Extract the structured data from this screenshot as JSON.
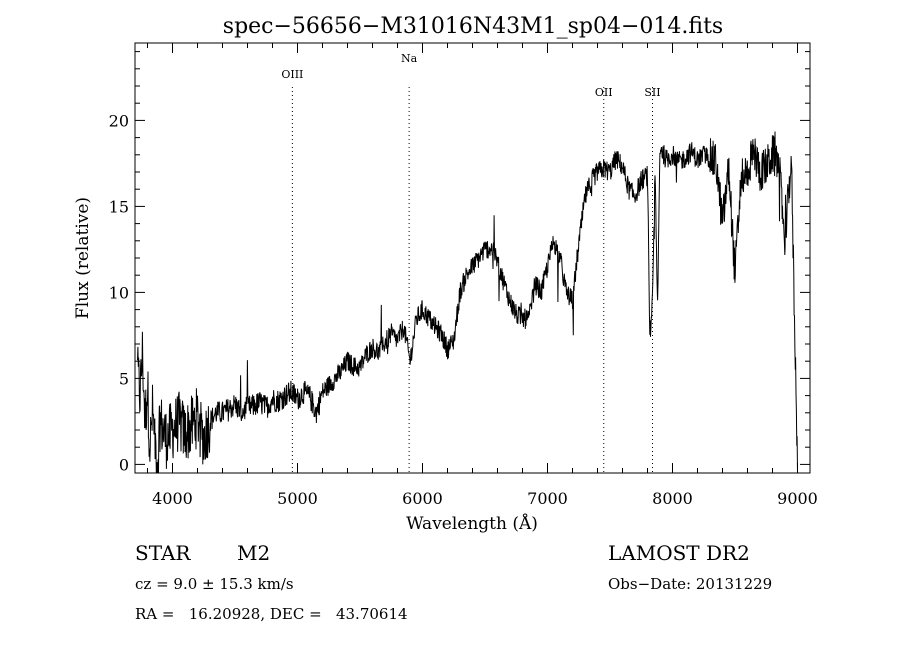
{
  "chart_data": {
    "type": "line",
    "title": "spec−56656−M31016N43M1_sp04−014.fits",
    "xlabel": "Wavelength (Å)",
    "ylabel": "Flux (relative)",
    "xlim": [
      3700,
      9100
    ],
    "ylim": [
      -0.5,
      24.5
    ],
    "xticks": [
      4000,
      5000,
      6000,
      7000,
      8000,
      9000
    ],
    "yticks": [
      0,
      5,
      10,
      15,
      20
    ],
    "grid": false,
    "lines": [
      {
        "label": "OIII",
        "x": 4959
      },
      {
        "label": "Na",
        "x": 5893
      },
      {
        "label": "OII",
        "x": 7450
      },
      {
        "label": "SII",
        "x": 7840
      }
    ],
    "series": [
      {
        "x": [
          3720,
          3740,
          3760,
          3780,
          3800,
          3820,
          3840,
          3860,
          3880,
          3900,
          3950,
          4000,
          4050,
          4100,
          4150,
          4200,
          4250,
          4300,
          4350,
          4400,
          4450,
          4500,
          4550,
          4600,
          4650,
          4700,
          4750,
          4800,
          4850,
          4900,
          4950,
          5000,
          5050,
          5100,
          5150,
          5200,
          5250,
          5300,
          5350,
          5400,
          5450,
          5500,
          5550,
          5600,
          5650,
          5700,
          5750,
          5800,
          5850,
          5900,
          5950,
          6000,
          6050,
          6100,
          6150,
          6200,
          6250,
          6300,
          6350,
          6400,
          6450,
          6500,
          6550,
          6600,
          6650,
          6700,
          6750,
          6800,
          6850,
          6900,
          6950,
          7000,
          7050,
          7100,
          7150,
          7200,
          7250,
          7300,
          7350,
          7400,
          7450,
          7500,
          7550,
          7600,
          7650,
          7700,
          7750,
          7800,
          7820,
          7840,
          7860,
          7880,
          7900,
          7950,
          8000,
          8050,
          8100,
          8150,
          8200,
          8250,
          8300,
          8350,
          8400,
          8450,
          8500,
          8550,
          8600,
          8650,
          8700,
          8750,
          8800,
          8850,
          8900,
          8950,
          9000
        ],
        "y": [
          5.5,
          4.0,
          6.5,
          2.5,
          4.5,
          1.0,
          3.0,
          1.5,
          0.0,
          2.5,
          1.5,
          2.0,
          2.5,
          1.8,
          2.2,
          2.8,
          1.5,
          2.5,
          3.0,
          3.0,
          3.2,
          3.5,
          3.0,
          3.3,
          3.4,
          3.6,
          3.3,
          3.8,
          3.7,
          4.0,
          4.2,
          3.8,
          4.2,
          3.9,
          3.0,
          4.2,
          4.6,
          5.0,
          5.4,
          6.0,
          5.7,
          5.6,
          6.4,
          6.8,
          6.5,
          7.1,
          7.6,
          7.2,
          8.0,
          6.0,
          8.4,
          9.0,
          8.5,
          8.0,
          7.6,
          6.7,
          7.2,
          10.0,
          11.0,
          11.5,
          12.0,
          12.5,
          12.6,
          11.8,
          10.6,
          9.5,
          8.7,
          8.5,
          8.4,
          10.5,
          10.0,
          11.5,
          13.0,
          12.0,
          10.0,
          9.5,
          12.8,
          15.5,
          16.5,
          17.0,
          17.2,
          17.0,
          17.8,
          17.3,
          16.0,
          15.6,
          16.5,
          16.8,
          6.5,
          9.5,
          17.0,
          9.0,
          18.5,
          17.7,
          18.0,
          17.6,
          17.8,
          18.2,
          17.7,
          18.0,
          17.8,
          17.5,
          14.0,
          17.2,
          11.0,
          16.8,
          17.0,
          18.2,
          17.0,
          17.3,
          18.0,
          17.5,
          13.0,
          17.8,
          0.0
        ]
      }
    ]
  },
  "info": {
    "class_label": "STAR",
    "subclass": "M2",
    "survey": "LAMOST DR2",
    "redshift_line": "cz = 9.0 ± 15.3 km/s",
    "obs_date_line": "Obs−Date: 20131229",
    "coords_line": "RA =   16.20928, DEC =   43.70614"
  }
}
